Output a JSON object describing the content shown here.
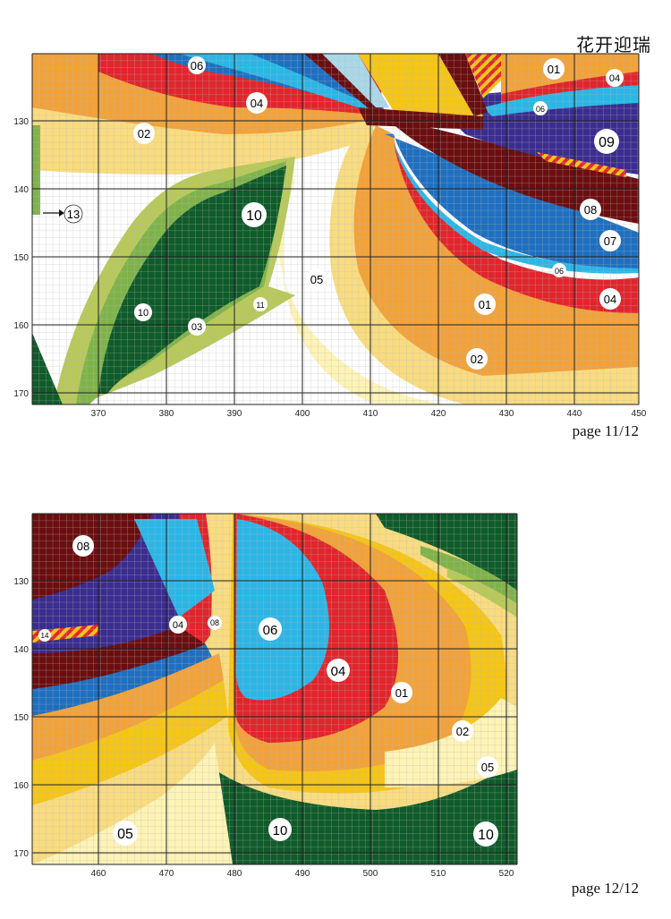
{
  "title": "花开迎瑞",
  "pages": [
    {
      "label": "page 11/12",
      "x_ticks": [
        "370",
        "380",
        "390",
        "400",
        "410",
        "420",
        "430",
        "440",
        "450"
      ],
      "y_ticks": [
        "130",
        "140",
        "150",
        "160",
        "170"
      ],
      "codes": [
        "06",
        "01",
        "04",
        "04",
        "06",
        "02",
        "09",
        "08",
        "13",
        "10",
        "07",
        "06",
        "05",
        "01",
        "04",
        "10",
        "11",
        "03",
        "02"
      ]
    },
    {
      "label": "page 12/12",
      "x_ticks": [
        "460",
        "470",
        "480",
        "490",
        "500",
        "510",
        "520"
      ],
      "y_ticks": [
        "130",
        "140",
        "150",
        "160",
        "170"
      ],
      "codes": [
        "08",
        "14",
        "04",
        "08",
        "06",
        "04",
        "01",
        "02",
        "05",
        "05",
        "10",
        "10"
      ]
    }
  ],
  "palette": {
    "01": "#f2a23a",
    "02": "#f9dc80",
    "03": "#b8c95a",
    "04": "#e1252c",
    "05": "#fdf3b5",
    "06": "#2bb6e6",
    "07": "#1f6fc0",
    "08": "#6b0e10",
    "09": "#3b2d8f",
    "10": "#0f5b2a",
    "11": "#a7c23a",
    "gold": "#f5c518",
    "green": "#7fb34a",
    "white": "#ffffff"
  }
}
